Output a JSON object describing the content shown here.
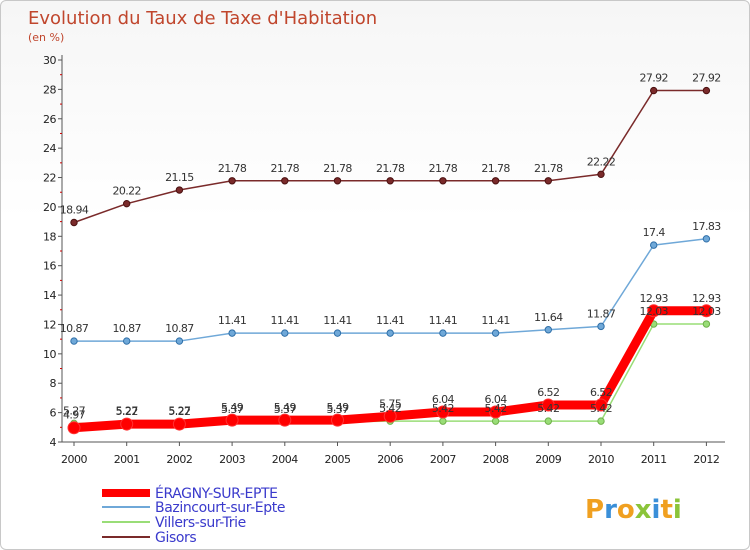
{
  "chart_data": {
    "type": "line",
    "title": "Evolution du Taux de Taxe d'Habitation",
    "subtitle": "(en %)",
    "categories": [
      "2000",
      "2001",
      "2002",
      "2003",
      "2004",
      "2005",
      "2006",
      "2007",
      "2008",
      "2009",
      "2010",
      "2011",
      "2012"
    ],
    "ylim": [
      4,
      30
    ],
    "yticks": [
      "4",
      "6",
      "8",
      "10",
      "12",
      "14",
      "16",
      "18",
      "20",
      "22",
      "24",
      "26",
      "28",
      "30"
    ],
    "grid": false,
    "legend_position": "bottom-left",
    "series": [
      {
        "name": "ÉRAGNY-SUR-EPTE",
        "color": "#ff0000",
        "values": [
          4.97,
          5.22,
          5.22,
          5.49,
          5.49,
          5.49,
          5.75,
          6.04,
          6.04,
          6.52,
          6.52,
          12.93,
          12.93
        ],
        "labels": [
          "4.97",
          "5.22",
          "5.22",
          "5.49",
          "5.49",
          "5.49",
          "5.75",
          "6.04",
          "6.04",
          "6.52",
          "6.52",
          "12.93",
          "12.93"
        ]
      },
      {
        "name": "Bazincourt-sur-Epte",
        "color": "#6fa8d8",
        "values": [
          10.87,
          10.87,
          10.87,
          11.41,
          11.41,
          11.41,
          11.41,
          11.41,
          11.41,
          11.64,
          11.87,
          17.4,
          17.83
        ],
        "labels": [
          "10.87",
          "10.87",
          "10.87",
          "11.41",
          "11.41",
          "11.41",
          "11.41",
          "11.41",
          "11.41",
          "11.64",
          "11.87",
          "17.4",
          "17.83"
        ]
      },
      {
        "name": "Villers-sur-Trie",
        "color": "#99dd77",
        "values": [
          5.27,
          5.27,
          5.27,
          5.37,
          5.37,
          5.37,
          5.42,
          5.42,
          5.42,
          5.42,
          5.42,
          12.03,
          12.03
        ],
        "labels": [
          "5.27",
          "5.27",
          "5.27",
          "5.37",
          "5.37",
          "5.37",
          "5.42",
          "5.42",
          "5.42",
          "5.42",
          "5.42",
          "12.03",
          "12.03"
        ]
      },
      {
        "name": "Gisors",
        "color": "#7a2a2a",
        "values": [
          18.94,
          20.22,
          21.15,
          21.78,
          21.78,
          21.78,
          21.78,
          21.78,
          21.78,
          21.78,
          22.22,
          27.92,
          27.92
        ],
        "labels": [
          "18.94",
          "20.22",
          "21.15",
          "21.78",
          "21.78",
          "21.78",
          "21.78",
          "21.78",
          "21.78",
          "21.78",
          "22.22",
          "27.92",
          "27.92"
        ]
      }
    ]
  },
  "logo": {
    "letters": [
      "P",
      "r",
      "o",
      "x",
      "i",
      "t",
      "i"
    ],
    "colors": [
      "#f0a020",
      "#3a8fd8",
      "#f0a020",
      "#8bc43a",
      "#3a8fd8",
      "#f0a020",
      "#8bc43a"
    ]
  }
}
